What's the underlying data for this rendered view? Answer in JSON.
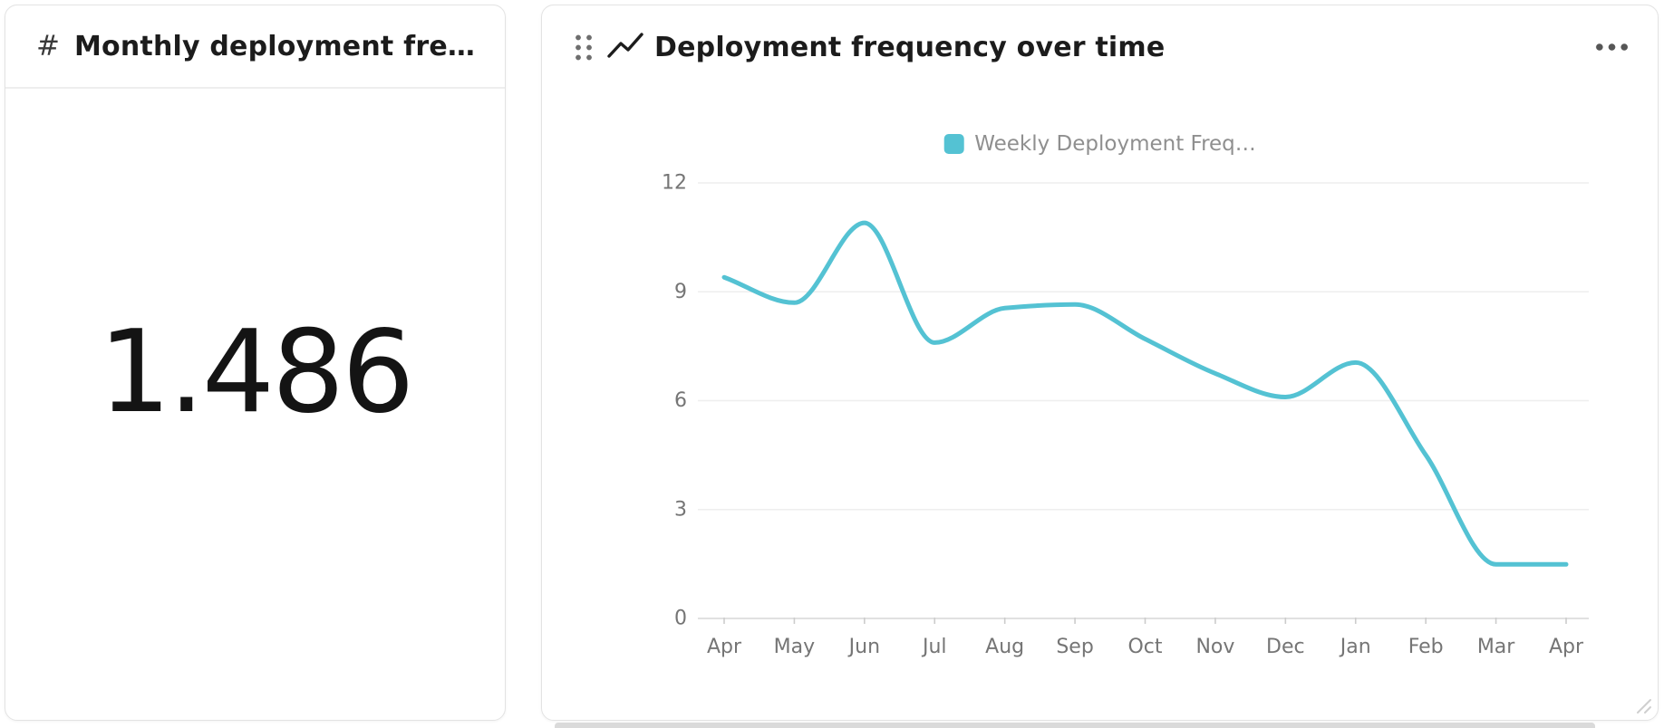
{
  "left_card": {
    "icon": "#",
    "title": "Monthly deployment frequen…",
    "value": "1.486"
  },
  "right_card": {
    "title": "Deployment frequency over time",
    "menu_icon": "ellipsis-horizontal",
    "drag_icon": "six-dot-drag-handle",
    "title_icon": "trend-line"
  },
  "colors": {
    "accent_teal": "#54c2d3",
    "grid_line": "#eeeeee",
    "axis_line": "#e1e1e1",
    "axis_label": "#757575",
    "legend_label": "#8f8f8f"
  },
  "chart_data": {
    "type": "line",
    "title": "Deployment frequency over time",
    "categories": [
      "Apr",
      "May",
      "Jun",
      "Jul",
      "Aug",
      "Sep",
      "Oct",
      "Nov",
      "Dec",
      "Jan",
      "Feb",
      "Mar",
      "Apr"
    ],
    "series": [
      {
        "name": "Weekly Deployment Freq…",
        "color": "#54c2d3",
        "values": [
          9.4,
          8.7,
          10.9,
          7.6,
          8.55,
          8.65,
          7.7,
          6.75,
          6.1,
          7.05,
          4.5,
          1.49,
          1.49
        ]
      }
    ],
    "xlabel": "",
    "ylabel": "",
    "ylim": [
      0,
      12
    ],
    "yticks": [
      0,
      3,
      6,
      9,
      12
    ],
    "grid": true,
    "legend_position": "top",
    "line_smoothing": "monotone"
  }
}
